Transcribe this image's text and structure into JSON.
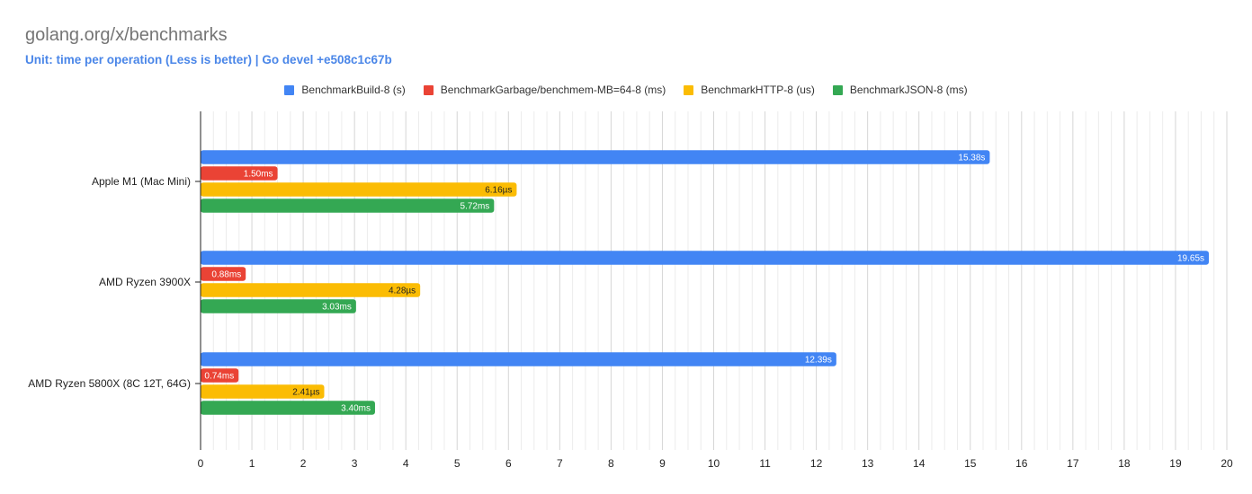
{
  "title": "golang.org/x/benchmarks",
  "subtitle": "Unit: time per operation (Less is better) |  Go devel +e508c1c67b",
  "colors": {
    "series": [
      "#4285f4",
      "#ea4335",
      "#fbbc04",
      "#34a853"
    ],
    "grid": "#d6d6d6",
    "axis": "#222222",
    "text": "#222222"
  },
  "chart_data": {
    "type": "bar",
    "orientation": "horizontal",
    "categories": [
      "Apple M1 (Mac Mini)",
      "AMD Ryzen 3900X",
      "AMD Ryzen 5800X (8C 12T, 64G)"
    ],
    "series": [
      {
        "name": "BenchmarkBuild-8 (s)",
        "values": [
          15.38,
          19.65,
          12.39
        ],
        "labels": [
          "15.38s",
          "19.65s",
          "12.39s"
        ],
        "label_color": "#ffffff"
      },
      {
        "name": "BenchmarkGarbage/benchmem-MB=64-8 (ms)",
        "values": [
          1.5,
          0.88,
          0.74
        ],
        "labels": [
          "1.50ms",
          "0.88ms",
          "0.74ms"
        ],
        "label_color": "#ffffff"
      },
      {
        "name": "BenchmarkHTTP-8 (us)",
        "values": [
          6.16,
          4.28,
          2.41
        ],
        "labels": [
          "6.16µs",
          "4.28µs",
          "2.41µs"
        ],
        "label_color": "#222222"
      },
      {
        "name": "BenchmarkJSON-8 (ms)",
        "values": [
          5.72,
          3.03,
          3.4
        ],
        "labels": [
          "5.72ms",
          "3.03ms",
          "3.40ms"
        ],
        "label_color": "#ffffff"
      }
    ],
    "xlim": [
      0,
      20
    ],
    "xticks": [
      0,
      1,
      2,
      3,
      4,
      5,
      6,
      7,
      8,
      9,
      10,
      11,
      12,
      13,
      14,
      15,
      16,
      17,
      18,
      19,
      20
    ],
    "minor_gridlines_per_major": 3,
    "legend_position": "top",
    "grid": true
  }
}
